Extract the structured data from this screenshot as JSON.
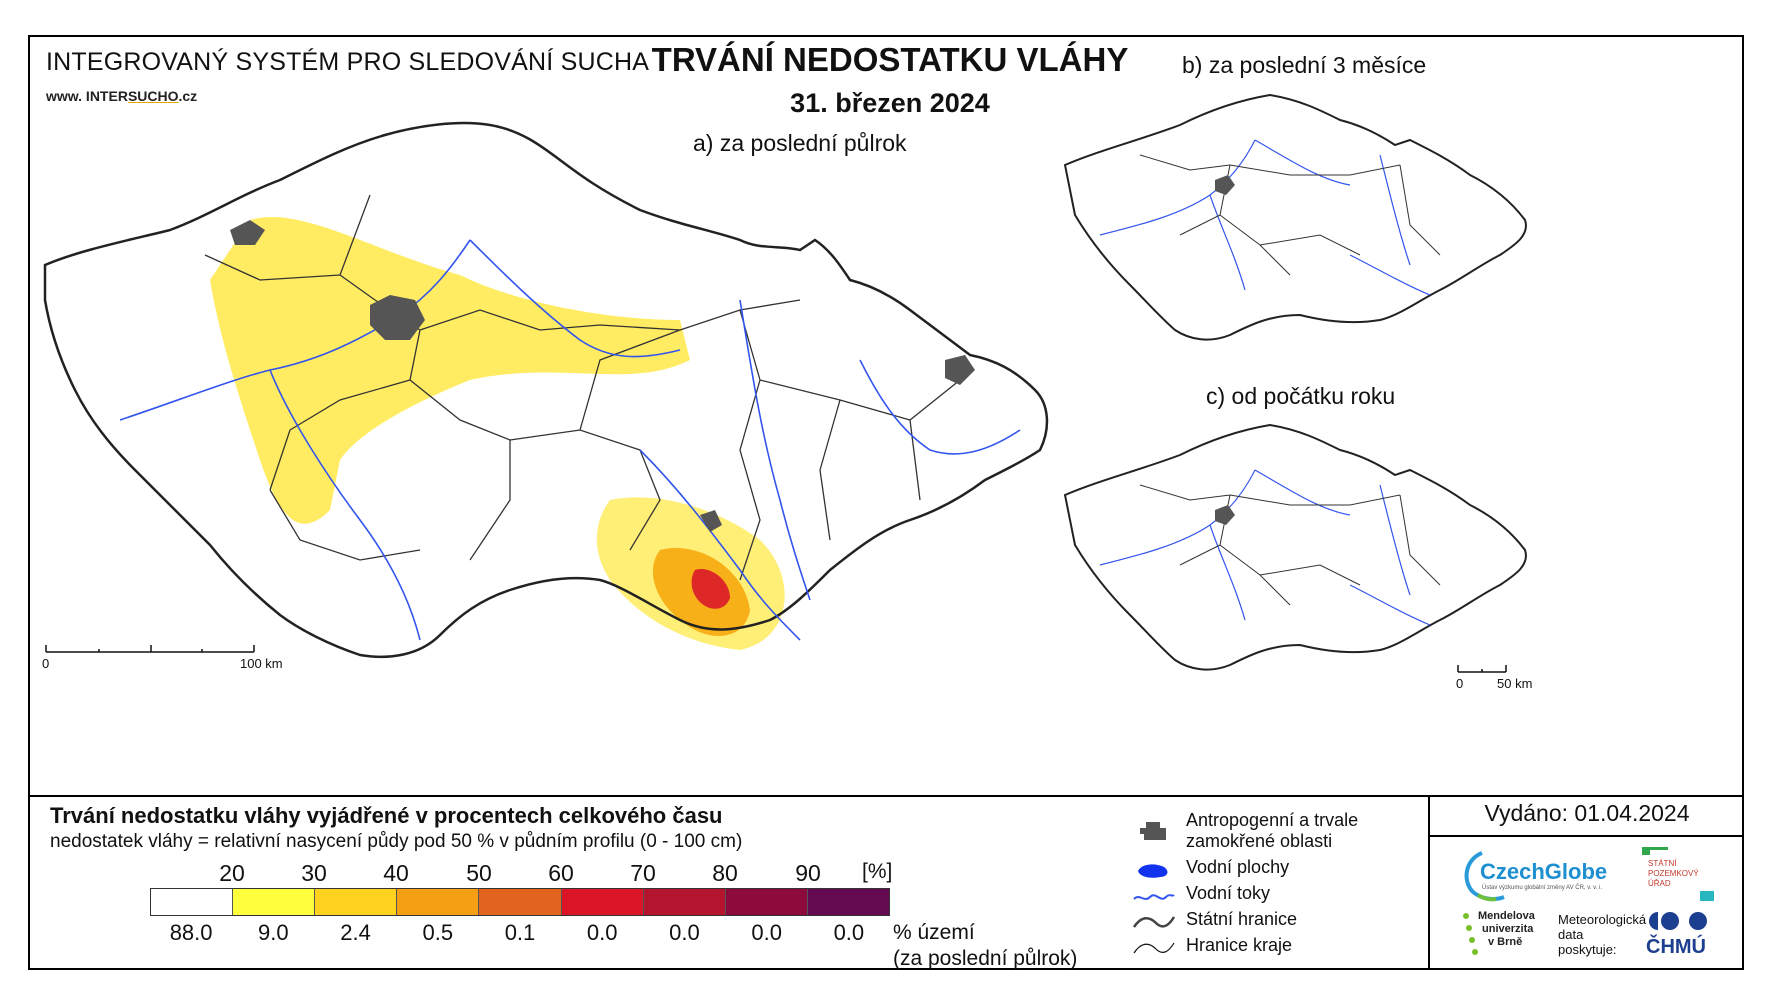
{
  "header": {
    "system_title": "INTEGROVANÝ SYSTÉM PRO SLEDOVÁNÍ SUCHA",
    "website_prefix": "www. INTER",
    "website_highlight": "SUCHO",
    "website_suffix": ".cz",
    "main_title": "TRVÁNÍ NEDOSTATKU VLÁHY",
    "date": "31. březen 2024"
  },
  "maps": {
    "main_label": "a) za poslední půlrok",
    "panel_b_label": "b) za poslední 3 měsíce",
    "panel_c_label": "c) od počátku roku",
    "main_scale_start": "0",
    "main_scale_end": "100 km",
    "small_scale_start": "0",
    "small_scale_end": "50 km",
    "colors": {
      "border": "#222222",
      "rivers": "#3355ee",
      "urban": "#555555",
      "yellow": "#ffe62e",
      "orange": "#f5a000",
      "red": "#d8102a"
    }
  },
  "legend": {
    "title": "Trvání nedostatku vláhy vyjádřené v procentech celkového času",
    "subtitle": "nedostatek vláhy = relativní nasycení půdy pod 50 % v půdním profilu (0 - 100 cm)",
    "ticks": [
      "20",
      "30",
      "40",
      "50",
      "60",
      "70",
      "80",
      "90"
    ],
    "unit": "[%]",
    "colors": [
      "#ffffff",
      "#ffff3c",
      "#ffd21e",
      "#f5a014",
      "#e2641e",
      "#dc1428",
      "#b4142d",
      "#8c0a3c",
      "#640a50"
    ],
    "percentages": [
      "88.0",
      "9.0",
      "2.4",
      "0.5",
      "0.1",
      "0.0",
      "0.0",
      "0.0",
      "0.0"
    ],
    "percent_label_line1": "% území",
    "percent_label_line2": "(za poslední půlrok)"
  },
  "symbols": {
    "urban": "Antropogenní a trvale zamokřené oblasti",
    "water_bodies": "Vodní plochy",
    "rivers": "Vodní toky",
    "state_border": "Státní hranice",
    "region_border": "Hranice kraje"
  },
  "issued": "Vydáno: 01.04.2024",
  "logos": {
    "czechglobe": "CzechGlobe",
    "czechglobe_sub": "Ústav výzkumu globální změny AV ČR, v. v. i.",
    "spu_line1": "STÁTNÍ",
    "spu_line2": "POZEMKOVÝ",
    "spu_line3": "ÚŘAD",
    "mendel_line1": "Mendelova",
    "mendel_line2": "univerzita",
    "mendel_line3": "v Brně",
    "met_line1": "Meteorologická",
    "met_line2": "data",
    "met_line3": "poskytuje:",
    "chmu": "ČHMÚ"
  }
}
